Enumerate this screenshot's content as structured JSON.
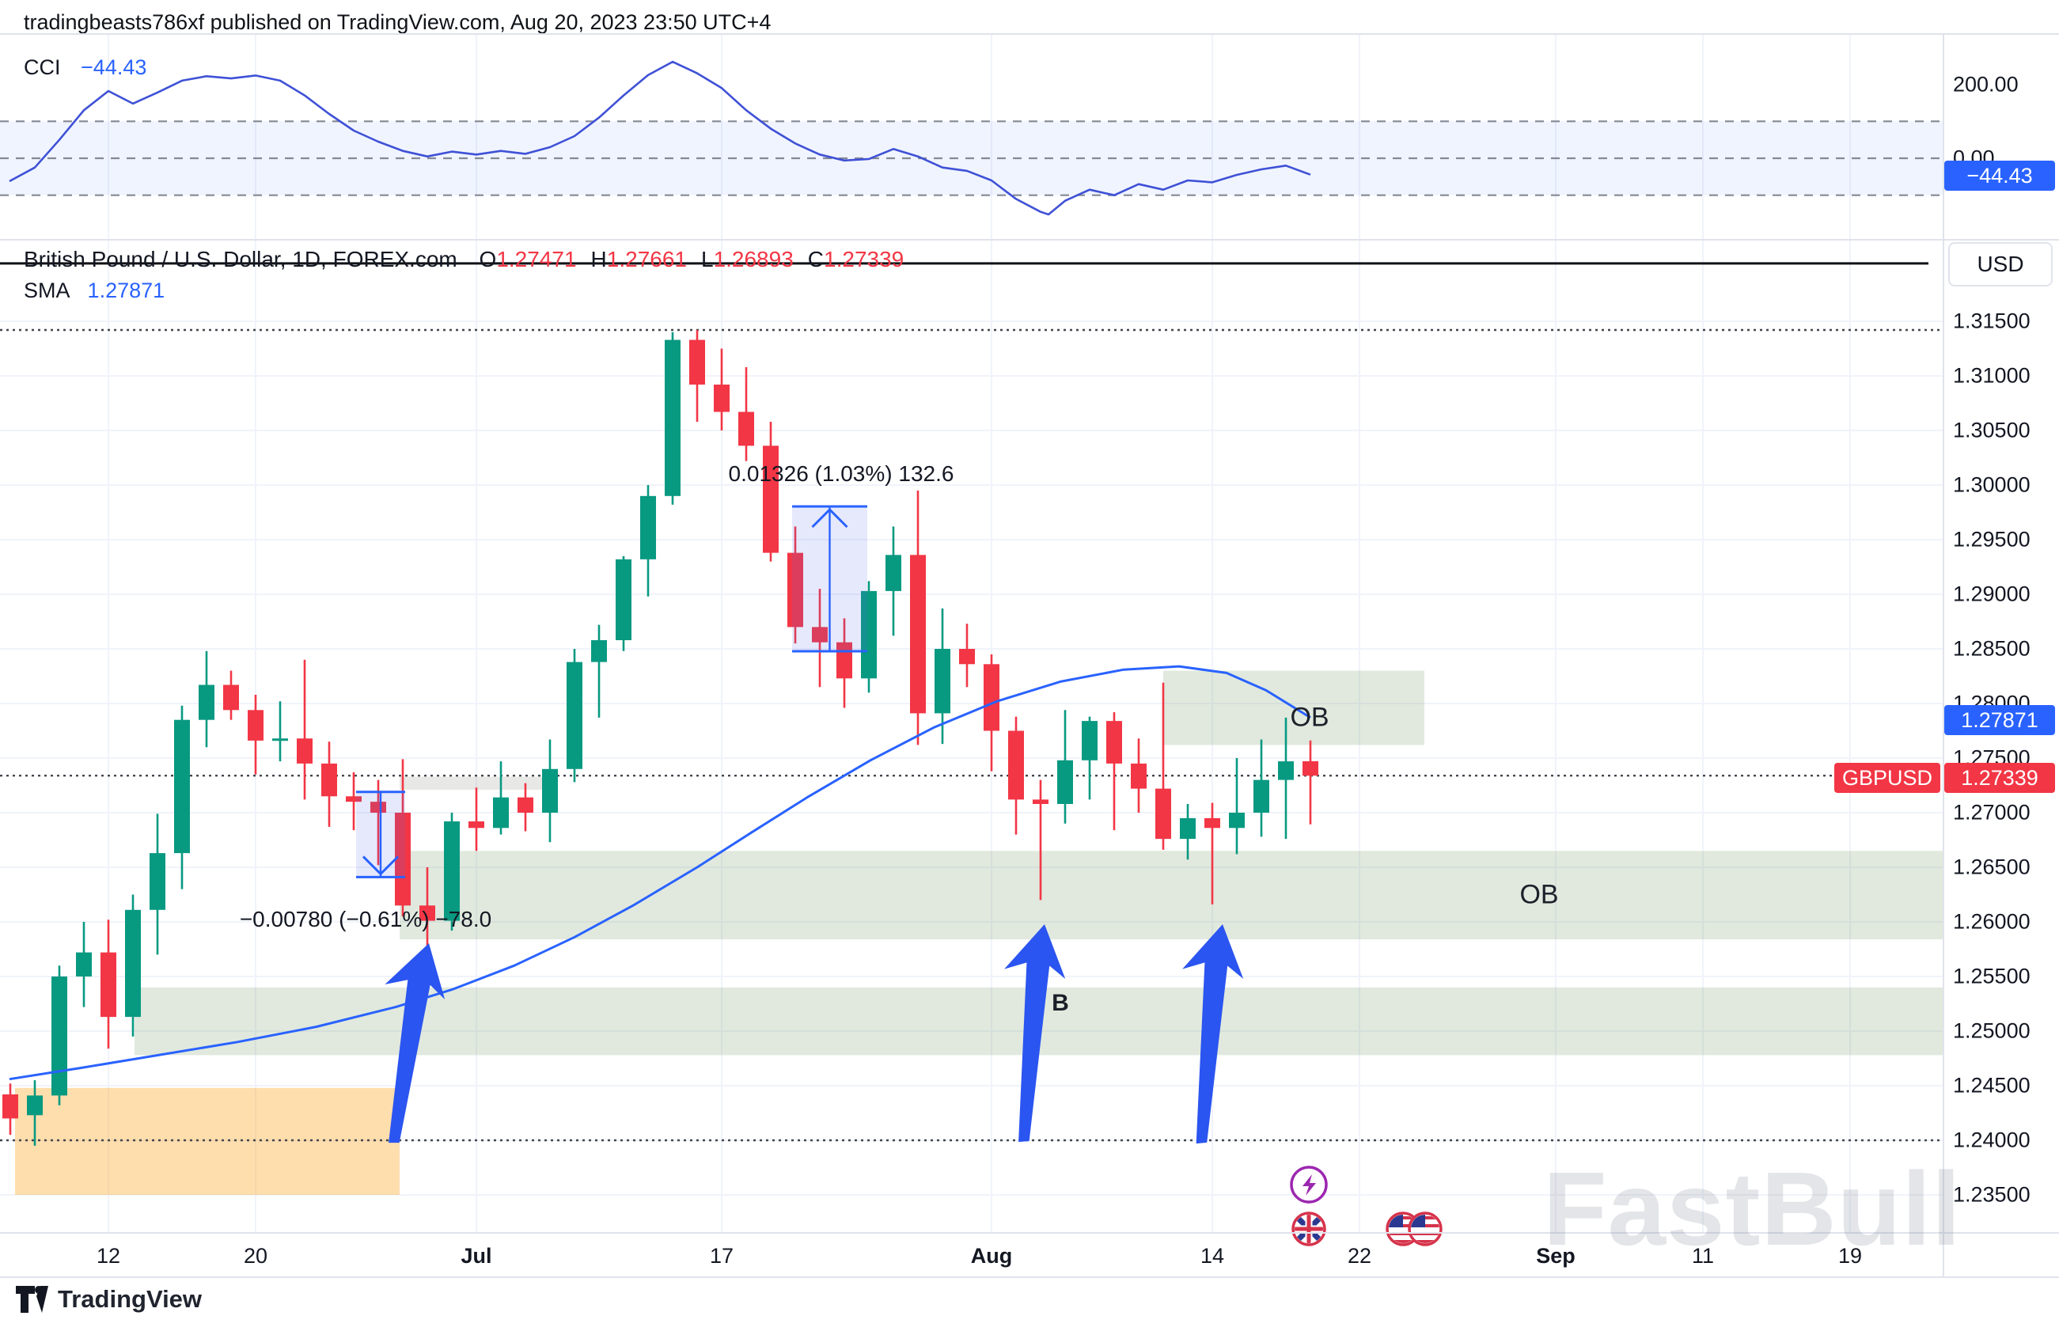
{
  "header": {
    "title": "tradingbeasts786xf published on TradingView.com, Aug 20, 2023 23:50 UTC+4"
  },
  "cci": {
    "label": "CCI",
    "value": "−44.43",
    "badge": "−44.43",
    "axis_labels": [
      {
        "text": "200.00",
        "v": 200
      },
      {
        "text": "0.00",
        "v": 0
      }
    ]
  },
  "main": {
    "title": "British Pound / U.S. Dollar, 1D, FOREX.com",
    "ohlc": [
      {
        "k": "O",
        "v": "1.27471"
      },
      {
        "k": "H",
        "v": "1.27661"
      },
      {
        "k": "L",
        "v": "1.26893"
      },
      {
        "k": "C",
        "v": "1.27339"
      }
    ],
    "sma_label": "SMA",
    "sma_value": "1.27871",
    "usd_button": "USD",
    "ob1": "OB",
    "ob2": "OB",
    "b_label": "B",
    "watermark": "FastBull",
    "badges": {
      "sma": "1.27871",
      "symbol": "GBPUSD",
      "price": "1.27339"
    },
    "icons": [
      "lightning-icon",
      "uk-flag-icon",
      "us-flag-icon",
      "us-flag-icon"
    ]
  },
  "footer": {
    "brand": "TradingView"
  },
  "colors": {
    "up": "#089981",
    "down": "#F23645",
    "accent": "#2962FF",
    "cci_line": "#3F51D6",
    "badge_blue": "#2962FF",
    "badge_red": "#F23645",
    "grid": "#f0f3fa",
    "zone_green": "rgba(105,145,90,0.20)",
    "zone_orange": "rgba(255,152,0,0.32)",
    "band_blue": "rgba(41,98,255,0.07)",
    "arrow_blue": "#2B55F0",
    "dotted": "#42464e"
  },
  "chart_data": {
    "type": "candlestick+indicator",
    "title": "British Pound / U.S. Dollar, 1D, FOREX.com",
    "layout": {
      "x0": 44,
      "dx": 31,
      "yTop": 406,
      "pTop": 1.315,
      "scale": 13800,
      "cciY0": 200,
      "cciScale": 0.467,
      "plotRight": 2455,
      "cciTop": 42,
      "cciBot": 302,
      "mainBot": 1557,
      "axisBot": 1613,
      "bodyW": 20
    },
    "price_axis": [
      "1.31500",
      "1.31000",
      "1.30500",
      "1.30000",
      "1.29500",
      "1.29000",
      "1.28500",
      "1.28000",
      "1.27500",
      "1.27000",
      "1.26500",
      "1.26000",
      "1.25500",
      "1.25000",
      "1.24500",
      "1.24000",
      "1.23500"
    ],
    "time_ticks": [
      {
        "label": "12",
        "i": 3,
        "bold": false
      },
      {
        "label": "20",
        "i": 9,
        "bold": false
      },
      {
        "label": "Jul",
        "i": 18,
        "bold": true
      },
      {
        "label": "17",
        "i": 28,
        "bold": false
      },
      {
        "label": "Aug",
        "i": 39,
        "bold": true
      },
      {
        "label": "14",
        "i": 48,
        "bold": false
      },
      {
        "label": "22",
        "i": 54,
        "bold": false
      },
      {
        "label": "Sep",
        "i": 62,
        "bold": true
      },
      {
        "label": "11",
        "i": 68,
        "bold": false
      },
      {
        "label": "19",
        "i": 74,
        "bold": false
      }
    ],
    "candles": [
      {
        "i": -1,
        "d": "Jun 6",
        "o": 1.2442,
        "h": 1.2452,
        "l": 1.2405,
        "c": 1.242
      },
      {
        "i": 0,
        "d": "Jun 7",
        "o": 1.2423,
        "h": 1.2455,
        "l": 1.2395,
        "c": 1.2441
      },
      {
        "i": 1,
        "d": "Jun 8",
        "o": 1.2441,
        "h": 1.256,
        "l": 1.2432,
        "c": 1.255
      },
      {
        "i": 2,
        "d": "Jun 9",
        "o": 1.255,
        "h": 1.26,
        "l": 1.2522,
        "c": 1.2572
      },
      {
        "i": 3,
        "d": "Jun 12",
        "o": 1.2572,
        "h": 1.2602,
        "l": 1.2484,
        "c": 1.2513
      },
      {
        "i": 4,
        "d": "Jun 13",
        "o": 1.2513,
        "h": 1.2625,
        "l": 1.2495,
        "c": 1.2611
      },
      {
        "i": 5,
        "d": "Jun 14",
        "o": 1.2611,
        "h": 1.2699,
        "l": 1.257,
        "c": 1.2663
      },
      {
        "i": 6,
        "d": "Jun 15",
        "o": 1.2663,
        "h": 1.2798,
        "l": 1.263,
        "c": 1.2785
      },
      {
        "i": 7,
        "d": "Jun 16",
        "o": 1.2785,
        "h": 1.2848,
        "l": 1.276,
        "c": 1.2817
      },
      {
        "i": 8,
        "d": "Jun 19",
        "o": 1.2817,
        "h": 1.283,
        "l": 1.2785,
        "c": 1.2794
      },
      {
        "i": 9,
        "d": "Jun 20",
        "o": 1.2794,
        "h": 1.2808,
        "l": 1.2735,
        "c": 1.2766
      },
      {
        "i": 10,
        "d": "Jun 21",
        "o": 1.2766,
        "h": 1.2802,
        "l": 1.2747,
        "c": 1.2768
      },
      {
        "i": 11,
        "d": "Jun 22",
        "o": 1.2768,
        "h": 1.284,
        "l": 1.2712,
        "c": 1.2745
      },
      {
        "i": 12,
        "d": "Jun 23",
        "o": 1.2745,
        "h": 1.2765,
        "l": 1.2687,
        "c": 1.2715
      },
      {
        "i": 13,
        "d": "Jun 26",
        "o": 1.2715,
        "h": 1.2737,
        "l": 1.2684,
        "c": 1.271
      },
      {
        "i": 14,
        "d": "Jun 27",
        "o": 1.271,
        "h": 1.273,
        "l": 1.2652,
        "c": 1.27
      },
      {
        "i": 15,
        "d": "Jun 28",
        "o": 1.27,
        "h": 1.2749,
        "l": 1.2605,
        "c": 1.2615
      },
      {
        "i": 16,
        "d": "Jun 29",
        "o": 1.2615,
        "h": 1.265,
        "l": 1.256,
        "c": 1.2601
      },
      {
        "i": 17,
        "d": "Jun 30",
        "o": 1.2601,
        "h": 1.27,
        "l": 1.2592,
        "c": 1.2692
      },
      {
        "i": 18,
        "d": "Jul 3",
        "o": 1.2692,
        "h": 1.2723,
        "l": 1.2665,
        "c": 1.2686
      },
      {
        "i": 19,
        "d": "Jul 4",
        "o": 1.2686,
        "h": 1.2747,
        "l": 1.268,
        "c": 1.2714
      },
      {
        "i": 20,
        "d": "Jul 5",
        "o": 1.2714,
        "h": 1.2727,
        "l": 1.2683,
        "c": 1.27
      },
      {
        "i": 21,
        "d": "Jul 6",
        "o": 1.27,
        "h": 1.2767,
        "l": 1.2673,
        "c": 1.274
      },
      {
        "i": 22,
        "d": "Jul 7",
        "o": 1.274,
        "h": 1.285,
        "l": 1.2728,
        "c": 1.2838
      },
      {
        "i": 23,
        "d": "Jul 10",
        "o": 1.2838,
        "h": 1.2872,
        "l": 1.2787,
        "c": 1.2858
      },
      {
        "i": 24,
        "d": "Jul 11",
        "o": 1.2858,
        "h": 1.2935,
        "l": 1.2848,
        "c": 1.2932
      },
      {
        "i": 25,
        "d": "Jul 12",
        "o": 1.2932,
        "h": 1.3,
        "l": 1.2898,
        "c": 1.299
      },
      {
        "i": 26,
        "d": "Jul 13",
        "o": 1.299,
        "h": 1.314,
        "l": 1.2982,
        "c": 1.3133
      },
      {
        "i": 27,
        "d": "Jul 14",
        "o": 1.3133,
        "h": 1.3142,
        "l": 1.3058,
        "c": 1.3092
      },
      {
        "i": 28,
        "d": "Jul 17",
        "o": 1.3092,
        "h": 1.3125,
        "l": 1.305,
        "c": 1.3067
      },
      {
        "i": 29,
        "d": "Jul 18",
        "o": 1.3067,
        "h": 1.3108,
        "l": 1.3022,
        "c": 1.3036
      },
      {
        "i": 30,
        "d": "Jul 19",
        "o": 1.3036,
        "h": 1.3058,
        "l": 1.293,
        "c": 1.2938
      },
      {
        "i": 31,
        "d": "Jul 20",
        "o": 1.2938,
        "h": 1.2962,
        "l": 1.2855,
        "c": 1.287
      },
      {
        "i": 32,
        "d": "Jul 21",
        "o": 1.287,
        "h": 1.2905,
        "l": 1.2815,
        "c": 1.2856
      },
      {
        "i": 33,
        "d": "Jul 24",
        "o": 1.2856,
        "h": 1.2878,
        "l": 1.2796,
        "c": 1.2823
      },
      {
        "i": 34,
        "d": "Jul 25",
        "o": 1.2823,
        "h": 1.2912,
        "l": 1.281,
        "c": 1.2903
      },
      {
        "i": 35,
        "d": "Jul 26",
        "o": 1.2903,
        "h": 1.2962,
        "l": 1.2862,
        "c": 1.2936
      },
      {
        "i": 36,
        "d": "Jul 27",
        "o": 1.2936,
        "h": 1.2995,
        "l": 1.2762,
        "c": 1.2791
      },
      {
        "i": 37,
        "d": "Jul 28",
        "o": 1.2791,
        "h": 1.2887,
        "l": 1.2763,
        "c": 1.285
      },
      {
        "i": 38,
        "d": "Jul 31",
        "o": 1.285,
        "h": 1.2873,
        "l": 1.2815,
        "c": 1.2836
      },
      {
        "i": 39,
        "d": "Aug 1",
        "o": 1.2836,
        "h": 1.2845,
        "l": 1.2738,
        "c": 1.2775
      },
      {
        "i": 40,
        "d": "Aug 2",
        "o": 1.2775,
        "h": 1.2788,
        "l": 1.268,
        "c": 1.2712
      },
      {
        "i": 41,
        "d": "Aug 3",
        "o": 1.2712,
        "h": 1.273,
        "l": 1.262,
        "c": 1.2708
      },
      {
        "i": 42,
        "d": "Aug 4",
        "o": 1.2708,
        "h": 1.2794,
        "l": 1.269,
        "c": 1.2748
      },
      {
        "i": 43,
        "d": "Aug 7",
        "o": 1.2748,
        "h": 1.2788,
        "l": 1.2712,
        "c": 1.2784
      },
      {
        "i": 44,
        "d": "Aug 8",
        "o": 1.2784,
        "h": 1.2792,
        "l": 1.2684,
        "c": 1.2745
      },
      {
        "i": 45,
        "d": "Aug 9",
        "o": 1.2745,
        "h": 1.2768,
        "l": 1.27,
        "c": 1.2722
      },
      {
        "i": 46,
        "d": "Aug 10",
        "o": 1.2722,
        "h": 1.2819,
        "l": 1.2666,
        "c": 1.2676
      },
      {
        "i": 47,
        "d": "Aug 11",
        "o": 1.2676,
        "h": 1.2708,
        "l": 1.2657,
        "c": 1.2695
      },
      {
        "i": 48,
        "d": "Aug 14",
        "o": 1.2695,
        "h": 1.2709,
        "l": 1.2616,
        "c": 1.2686
      },
      {
        "i": 49,
        "d": "Aug 15",
        "o": 1.2686,
        "h": 1.275,
        "l": 1.2662,
        "c": 1.27
      },
      {
        "i": 50,
        "d": "Aug 16",
        "o": 1.27,
        "h": 1.2767,
        "l": 1.2678,
        "c": 1.273
      },
      {
        "i": 51,
        "d": "Aug 17",
        "o": 1.273,
        "h": 1.2787,
        "l": 1.2676,
        "c": 1.2747
      },
      {
        "i": 52,
        "d": "Aug 18",
        "o": 1.27471,
        "h": 1.27661,
        "l": 1.26893,
        "c": 1.27339
      }
    ],
    "sma": {
      "name": "SMA",
      "current": 1.27871,
      "points": [
        [
          12,
          1.2456
        ],
        [
          100,
          1.2466
        ],
        [
          200,
          1.2478
        ],
        [
          300,
          1.249
        ],
        [
          400,
          1.2504
        ],
        [
          500,
          1.2522
        ],
        [
          571,
          1.2538
        ],
        [
          650,
          1.256
        ],
        [
          726,
          1.2586
        ],
        [
          800,
          1.2615
        ],
        [
          881,
          1.265
        ],
        [
          950,
          1.2682
        ],
        [
          1020,
          1.2714
        ],
        [
          1100,
          1.2748
        ],
        [
          1180,
          1.2778
        ],
        [
          1260,
          1.2802
        ],
        [
          1340,
          1.282
        ],
        [
          1420,
          1.2831
        ],
        [
          1490,
          1.2834
        ],
        [
          1550,
          1.2828
        ],
        [
          1600,
          1.2812
        ],
        [
          1656,
          1.27871
        ]
      ]
    },
    "cci_series": {
      "name": "CCI",
      "current": -44.43,
      "band": [
        100,
        -100
      ],
      "guides": [
        100,
        0,
        -100
      ],
      "points": [
        [
          12,
          -62
        ],
        [
          44,
          -25
        ],
        [
          75,
          50
        ],
        [
          106,
          130
        ],
        [
          137,
          182
        ],
        [
          168,
          148
        ],
        [
          199,
          178
        ],
        [
          230,
          210
        ],
        [
          261,
          222
        ],
        [
          292,
          216
        ],
        [
          323,
          224
        ],
        [
          354,
          210
        ],
        [
          385,
          170
        ],
        [
          416,
          120
        ],
        [
          447,
          75
        ],
        [
          478,
          45
        ],
        [
          509,
          20
        ],
        [
          540,
          5
        ],
        [
          571,
          18
        ],
        [
          602,
          10
        ],
        [
          633,
          20
        ],
        [
          664,
          12
        ],
        [
          695,
          30
        ],
        [
          726,
          60
        ],
        [
          757,
          110
        ],
        [
          788,
          170
        ],
        [
          819,
          225
        ],
        [
          850,
          261
        ],
        [
          881,
          230
        ],
        [
          912,
          190
        ],
        [
          943,
          130
        ],
        [
          974,
          80
        ],
        [
          1005,
          40
        ],
        [
          1036,
          10
        ],
        [
          1067,
          -6
        ],
        [
          1098,
          -2
        ],
        [
          1129,
          25
        ],
        [
          1160,
          5
        ],
        [
          1191,
          -25
        ],
        [
          1222,
          -34
        ],
        [
          1253,
          -60
        ],
        [
          1284,
          -110
        ],
        [
          1315,
          -145
        ],
        [
          1325,
          -152
        ],
        [
          1346,
          -115
        ],
        [
          1377,
          -85
        ],
        [
          1408,
          -100
        ],
        [
          1439,
          -70
        ],
        [
          1470,
          -85
        ],
        [
          1501,
          -60
        ],
        [
          1532,
          -65
        ],
        [
          1563,
          -45
        ],
        [
          1594,
          -30
        ],
        [
          1625,
          -20
        ],
        [
          1656,
          -44.43
        ]
      ]
    },
    "zones": [
      {
        "name": "order-block-upper",
        "x1": 1470,
        "x2": 1800,
        "p1": 1.283,
        "p2": 1.2762,
        "color": "green"
      },
      {
        "name": "order-block-mid",
        "x1": 505,
        "x2": 2455,
        "p1": 1.2665,
        "p2": 1.2584,
        "color": "green"
      },
      {
        "name": "order-block-lower",
        "x1": 170,
        "x2": 2455,
        "p1": 1.254,
        "p2": 1.2478,
        "color": "green"
      },
      {
        "name": "gray-strip",
        "x1": 505,
        "x2": 705,
        "p1": 1.2733,
        "p2": 1.2721,
        "color": "gray"
      },
      {
        "name": "orange-zone",
        "x1": 19,
        "x2": 505,
        "p1": 1.2448,
        "p2": 1.235,
        "color": "orange"
      }
    ],
    "ob_labels": [
      {
        "text": "OB",
        "x": 1655,
        "y": 907
      },
      {
        "text": "OB",
        "x": 1945,
        "y": 1131
      }
    ],
    "measurements": [
      {
        "dir": "up",
        "x1": 1001,
        "x2": 1096,
        "p_top": 1.29804,
        "p_bot": 1.28478,
        "text": "0.01326 (1.03%) 132.6",
        "tx": 1063,
        "ty": 599
      },
      {
        "dir": "down",
        "x1": 450,
        "x2": 512,
        "p_top": 1.2719,
        "p_bot": 1.2641,
        "text": "−0.00780 (−0.61%) −78.0",
        "tx": 462,
        "ty": 1162
      }
    ],
    "hlines": [
      {
        "p": 1.3203,
        "style": "solid",
        "x2": 2437
      },
      {
        "p": 1.3142,
        "style": "dotted",
        "x2": 2455
      },
      {
        "p": 1.27339,
        "style": "dotted",
        "x2": 2455
      },
      {
        "p": 1.24,
        "style": "dotted",
        "x2": 2455
      }
    ],
    "arrows": [
      {
        "tip": [
          542,
          1192
        ],
        "len": 252,
        "rot": 17
      },
      {
        "tip": [
          1320,
          1168
        ],
        "len": 272,
        "rot": 12
      },
      {
        "tip": [
          1545,
          1168
        ],
        "len": 274,
        "rot": 12
      }
    ],
    "event_icons": [
      {
        "type": "lightning",
        "x": 1654,
        "y": 1497
      },
      {
        "type": "uk-flag",
        "x": 1654,
        "y": 1553
      },
      {
        "type": "us-flag",
        "x": 1773,
        "y": 1553
      },
      {
        "type": "us-flag",
        "x": 1801,
        "y": 1553
      }
    ],
    "ylim": [
      1.235,
      1.315
    ],
    "grid": true,
    "legend_position": "top-left"
  }
}
